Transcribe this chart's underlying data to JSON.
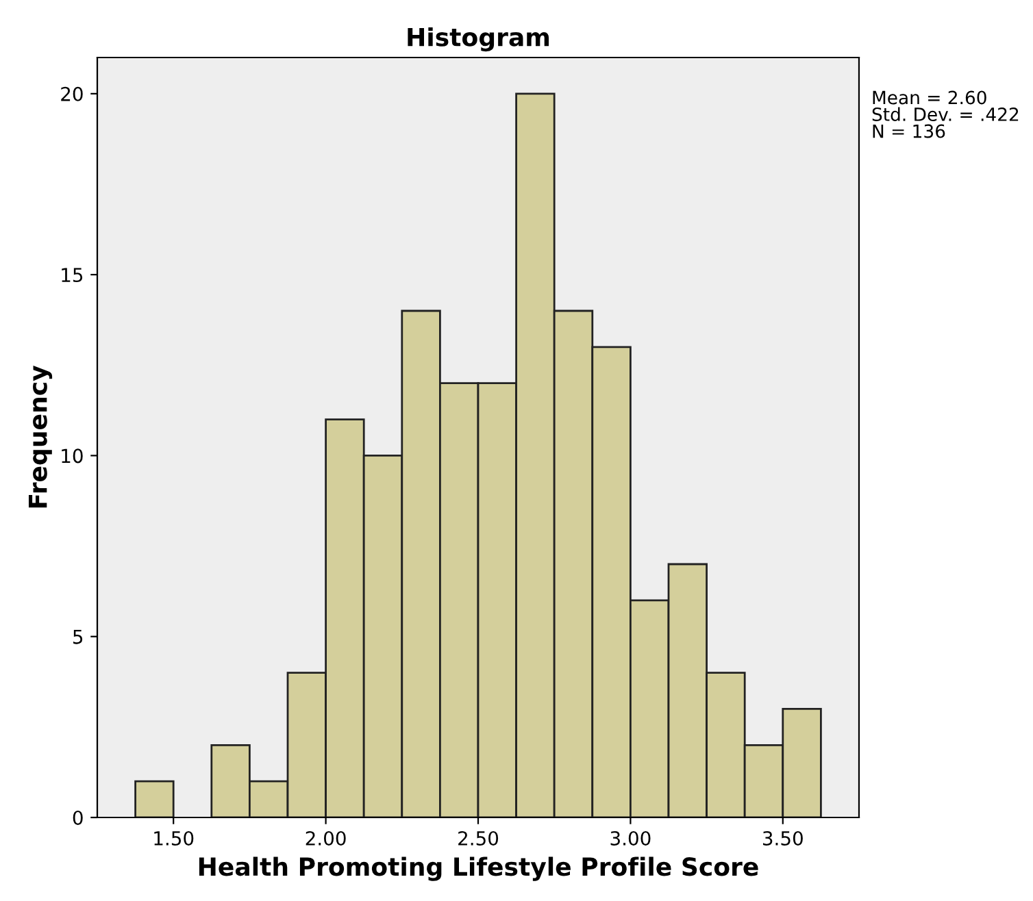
{
  "chart_data": {
    "type": "histogram",
    "title": "Histogram",
    "xlabel": "Health Promoting Lifestyle Profile Score",
    "ylabel": "Frequency",
    "bins": [
      1.375,
      1.5,
      1.625,
      1.75,
      1.875,
      2.0,
      2.125,
      2.25,
      2.375,
      2.5,
      2.625,
      2.75,
      2.875,
      3.0,
      3.125,
      3.25,
      3.375,
      3.5,
      3.625
    ],
    "values": [
      1,
      0,
      2,
      1,
      4,
      11,
      10,
      14,
      12,
      12,
      20,
      14,
      13,
      6,
      7,
      4,
      2,
      3
    ],
    "color": "#d4cf9b",
    "xlim": [
      1.25,
      3.75
    ],
    "xticks": [
      {
        "value": 1.5,
        "label": "1.50"
      },
      {
        "value": 2.0,
        "label": "2.00"
      },
      {
        "value": 2.5,
        "label": "2.50"
      },
      {
        "value": 3.0,
        "label": "3.00"
      },
      {
        "value": 3.5,
        "label": "3.50"
      }
    ],
    "ylim": [
      0,
      21
    ],
    "yticks": [
      0,
      5,
      10,
      15,
      20
    ],
    "annotations": [
      "Mean = 2.60\nStd. Dev. = .422\nN = 136"
    ],
    "grid": false,
    "legend": false
  }
}
